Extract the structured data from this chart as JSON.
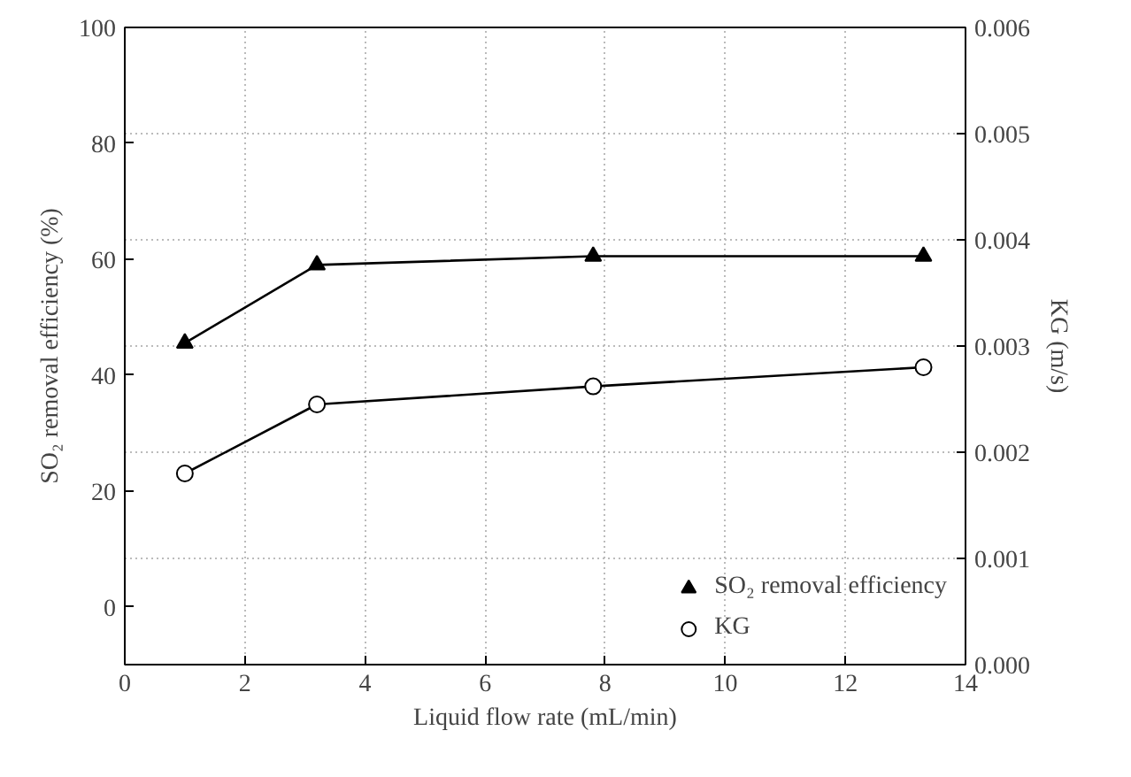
{
  "chart_data": {
    "type": "line",
    "xlabel": "Liquid flow rate (mL/min)",
    "ylabel": "SO₂ removal efficiency (%)",
    "y2label": "KG (m/s)",
    "xlim": [
      0,
      14
    ],
    "xticks": [
      0,
      2,
      4,
      6,
      8,
      10,
      12,
      14
    ],
    "ylim": [
      -10,
      100
    ],
    "yticks": [
      0,
      20,
      40,
      60,
      80,
      100
    ],
    "y2lim": [
      0,
      0.006
    ],
    "y2ticks": [
      {
        "value": 0,
        "label": "0.000"
      },
      {
        "value": 0.001,
        "label": "0.001"
      },
      {
        "value": 0.002,
        "label": "0.002"
      },
      {
        "value": 0.003,
        "label": "0.003"
      },
      {
        "value": 0.004,
        "label": "0.004"
      },
      {
        "value": 0.005,
        "label": "0.005"
      },
      {
        "value": 0.006,
        "label": "0.006"
      }
    ],
    "grid": true,
    "legend": "bottom right",
    "series": [
      {
        "name": "SO₂ removal efficiency",
        "color": "#000000",
        "marker": "triangle",
        "x": [
          1.0,
          3.2,
          7.8,
          13.3
        ],
        "values": [
          45.5,
          59,
          60.5,
          60.5
        ]
      },
      {
        "name": "KG",
        "color": "#000000",
        "marker": "circle",
        "axis": "y2",
        "x": [
          1.0,
          3.2,
          7.8,
          13.3
        ],
        "values": [
          0.0018,
          0.00245,
          0.00262,
          0.0028
        ]
      }
    ]
  }
}
